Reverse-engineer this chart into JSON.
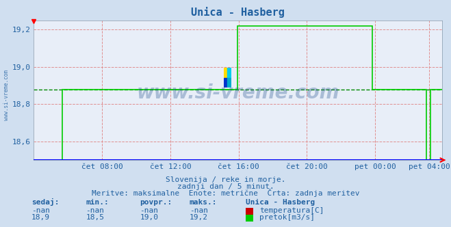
{
  "title": "Unica - Hasberg",
  "bg_color": "#d0dff0",
  "plot_bg_color": "#e8eef8",
  "text_color": "#2060a0",
  "watermark": "www.si-vreme.com",
  "line_color_flow": "#00cc00",
  "line_color_temp": "#cc0000",
  "dashed_line_color": "#008800",
  "grid_h_color": "#e09090",
  "grid_v_color": "#e09090",
  "subtitle1": "Slovenija / reke in morje.",
  "subtitle2": "zadnji dan / 5 minut.",
  "subtitle3": "Meritve: maksimalne  Enote: metrične  Črta: zadnja meritev",
  "table_headers": [
    "sedaj:",
    "min.:",
    "povpr.:",
    "maks.:"
  ],
  "table_row1": [
    "-nan",
    "-nan",
    "-nan",
    "-nan"
  ],
  "table_row2": [
    "18,9",
    "18,5",
    "19,0",
    "19,2"
  ],
  "legend_title": "Unica - Hasberg",
  "legend_items": [
    "temperatura[C]",
    "pretok[m3/s]"
  ],
  "legend_colors": [
    "#cc0000",
    "#00cc00"
  ],
  "xlim": [
    0,
    287
  ],
  "ylim": [
    18.5,
    19.25
  ],
  "yticks": [
    18.6,
    18.8,
    19.0,
    19.2
  ],
  "xtick_labels": [
    "čet 08:00",
    "čet 12:00",
    "čet 16:00",
    "čet 20:00",
    "pet 00:00",
    "pet 04:00"
  ],
  "xtick_positions": [
    48,
    96,
    144,
    192,
    240,
    278
  ],
  "dashed_value": 18.88,
  "flow_flat_low": 18.5,
  "flow_mid": 18.88,
  "flow_high": 19.22,
  "rise1_x": 20,
  "flat1_end": 143,
  "rise2_x": 143,
  "flat2_end": 238,
  "drop1_x": 238,
  "flat3_end": 276,
  "drop2_x": 276,
  "end_x": 287
}
